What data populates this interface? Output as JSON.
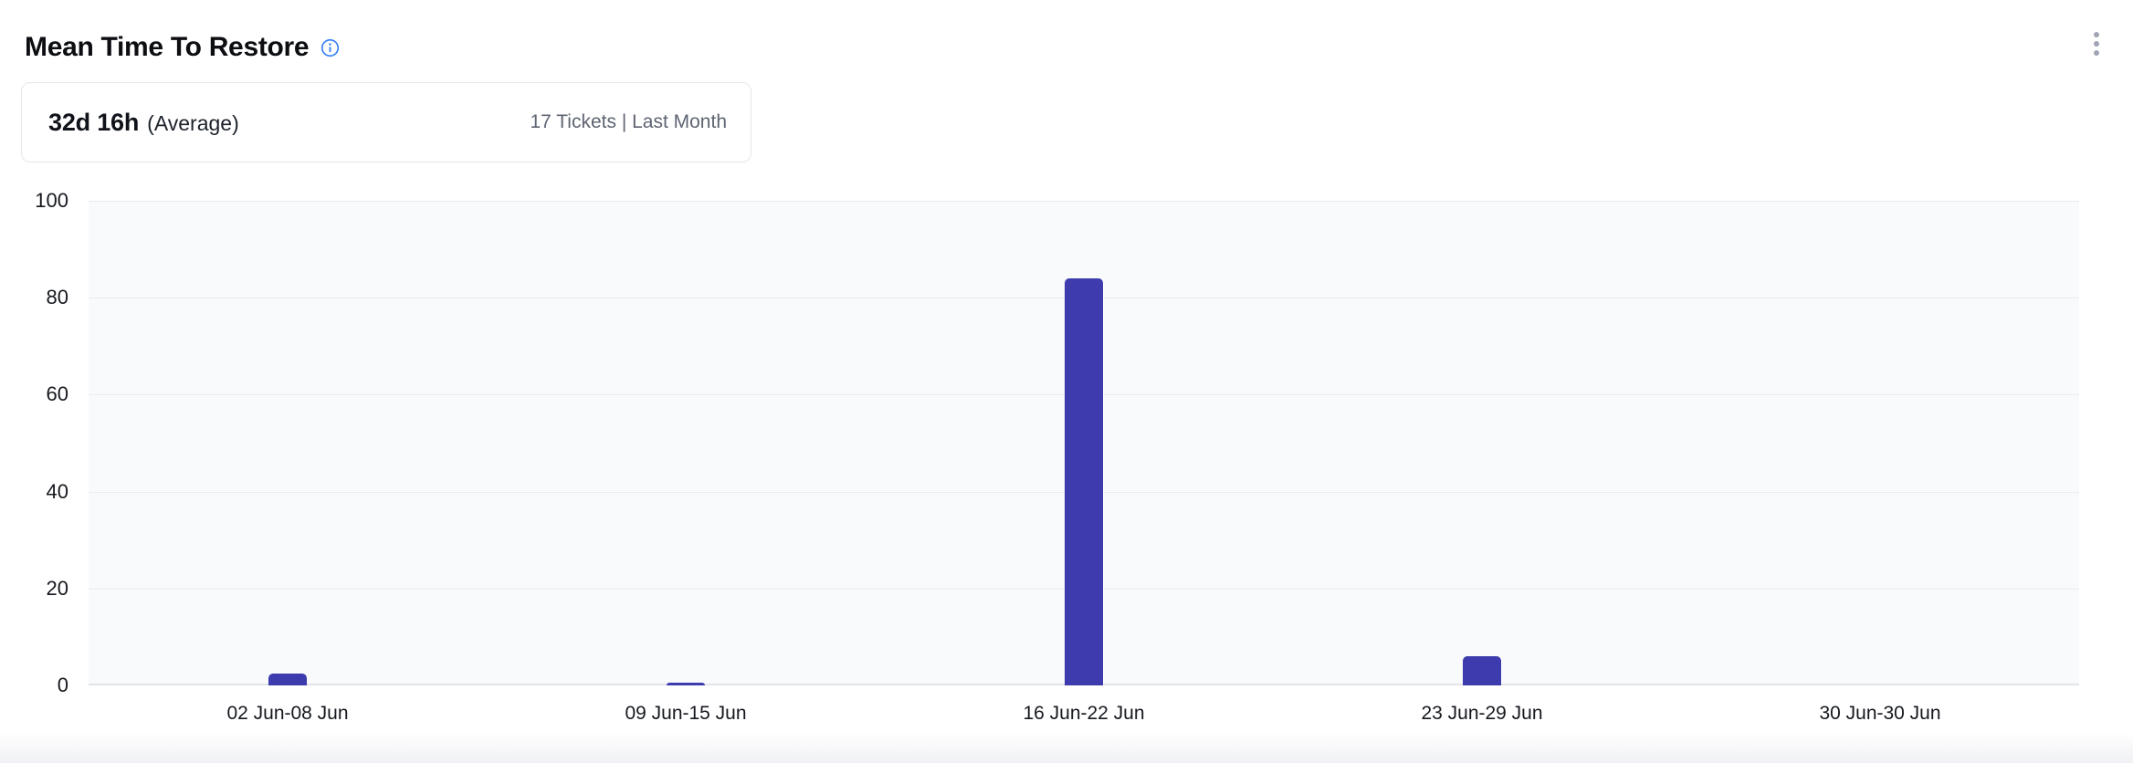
{
  "header": {
    "title": "Mean Time To Restore"
  },
  "summary": {
    "value": "32d 16h",
    "suffix": "(Average)",
    "meta": "17 Tickets | Last Month"
  },
  "colors": {
    "bar": "#3d3bad",
    "info_icon": "#3b82f6",
    "plot_background": "#f9fafc",
    "gridline": "#e9ebef",
    "axis_text": "#15181e",
    "muted_text": "#5e6472",
    "card_border": "#e4e6ea",
    "kebab_dots": "#a1a4b2"
  },
  "chart_data": {
    "type": "bar",
    "title": "Mean Time To Restore",
    "categories": [
      "02 Jun-08 Jun",
      "09 Jun-15 Jun",
      "16 Jun-22 Jun",
      "23 Jun-29 Jun",
      "30 Jun-30 Jun"
    ],
    "values": [
      2.5,
      0.6,
      84,
      6,
      0
    ],
    "xlabel": "",
    "ylabel": "",
    "yticks": [
      0,
      20,
      40,
      60,
      80,
      100
    ],
    "ylim": [
      0,
      100
    ],
    "grid": true,
    "legend": false,
    "bar_color": "#3d3bad"
  }
}
